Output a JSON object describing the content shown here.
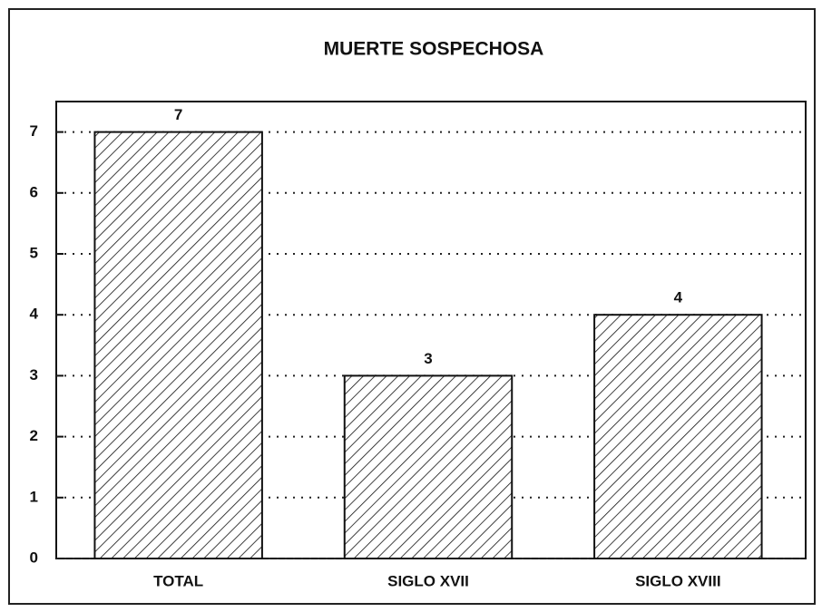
{
  "chart_data": {
    "type": "bar",
    "title": "MUERTE SOSPECHOSA",
    "categories": [
      "TOTAL",
      "SIGLO XVII",
      "SIGLO XVIII"
    ],
    "values": [
      7,
      3,
      4
    ],
    "color": "#111111",
    "ylim": [
      0,
      7.5
    ],
    "yticks": [
      0,
      1,
      2,
      3,
      4,
      5,
      6,
      7
    ],
    "grid": true
  }
}
